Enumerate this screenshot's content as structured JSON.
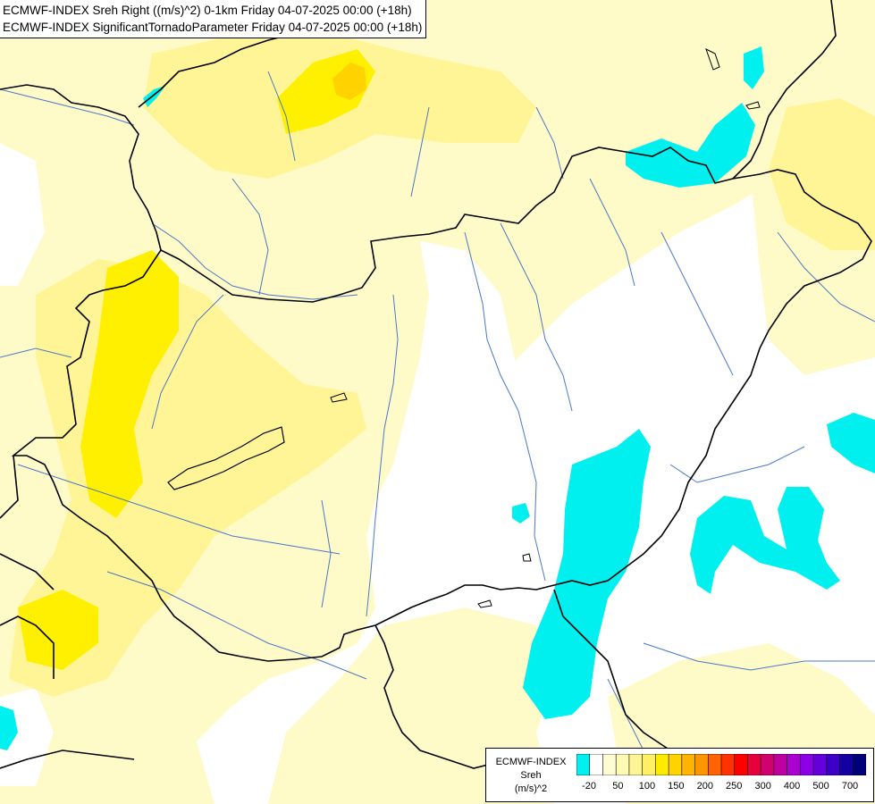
{
  "titles": {
    "line1": "ECMWF-INDEX Sreh Right ((m/s)^2) 0-1km Friday 04-07-2025 00:00 (+18h)",
    "line2": "ECMWF-INDEX SignificantTornadoParameter Friday 04-07-2025 00:00 (+18h)"
  },
  "legend": {
    "model": "ECMWF-INDEX",
    "parameter": "Sreh",
    "unit": "(m/s)^2",
    "colors": [
      "#00f0f0",
      "#ffffff",
      "#fffbd2",
      "#fff9b4",
      "#fff596",
      "#fff064",
      "#ffeb00",
      "#ffd200",
      "#ffb400",
      "#ff9600",
      "#ff6400",
      "#ff3200",
      "#ff0000",
      "#e6003c",
      "#d2006e",
      "#be00a0",
      "#aa00d2",
      "#8c00e6",
      "#6400dc",
      "#3c00c8",
      "#1400a0",
      "#000078"
    ],
    "tick_labels": [
      "-20",
      "50",
      "100",
      "150",
      "200",
      "250",
      "300",
      "400",
      "500",
      "700"
    ]
  },
  "colors": {
    "light_yellow": "#fffbc8",
    "yellow": "#fff596",
    "bright_yellow": "#fff000",
    "orange_yellow": "#ffd200",
    "cyan": "#00f0f0",
    "border": "#000000",
    "river": "#4a78c8"
  }
}
